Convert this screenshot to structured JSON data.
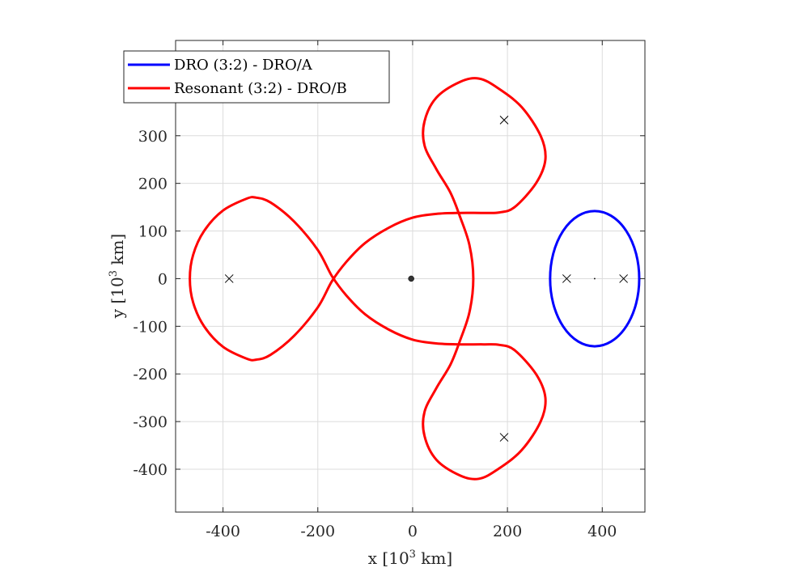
{
  "chart_data": {
    "type": "line",
    "xlabel_prefix": "x [10",
    "ylabel_prefix": "y [10",
    "unit_exponent": "3",
    "unit_suffix": " km]",
    "xlim": [
      -500,
      490
    ],
    "ylim": [
      -490,
      500
    ],
    "xticks": [
      -400,
      -200,
      0,
      200,
      400
    ],
    "yticks": [
      -400,
      -300,
      -200,
      -100,
      0,
      100,
      200,
      300
    ],
    "xtick_labels": [
      "-400",
      "-200",
      "0",
      "200",
      "400"
    ],
    "ytick_labels": [
      "-400",
      "-300",
      "-200",
      "-100",
      "0",
      "100",
      "200",
      "300"
    ],
    "grid": true,
    "legend_position": "top-left",
    "series": [
      {
        "name": "DRO (3:2) - DRO/A",
        "color": "#0000ff",
        "center": [
          384,
          0
        ],
        "semi_axes": [
          94,
          142
        ]
      },
      {
        "name": "Resonant (3:2) - DRO/B",
        "color": "#ff0000",
        "points": [
          [
            -470,
            0
          ],
          [
            -463,
            -50
          ],
          [
            -440,
            -100
          ],
          [
            -400,
            -143
          ],
          [
            -350,
            -168
          ],
          [
            -330,
            -170
          ],
          [
            -300,
            -160
          ],
          [
            -250,
            -120
          ],
          [
            -200,
            -60
          ],
          [
            -170,
            -5
          ],
          [
            -140,
            35
          ],
          [
            -100,
            75
          ],
          [
            -50,
            107
          ],
          [
            0,
            128
          ],
          [
            50,
            136
          ],
          [
            100,
            138
          ],
          [
            150,
            138
          ],
          [
            183,
            139
          ],
          [
            215,
            150
          ],
          [
            260,
            200
          ],
          [
            280,
            250
          ],
          [
            270,
            300
          ],
          [
            230,
            360
          ],
          [
            180,
            400
          ],
          [
            140,
            420
          ],
          [
            100,
            413
          ],
          [
            50,
            380
          ],
          [
            25,
            330
          ],
          [
            25,
            280
          ],
          [
            50,
            230
          ],
          [
            80,
            180
          ],
          [
            100,
            130
          ],
          [
            120,
            70
          ],
          [
            128,
            0
          ],
          [
            120,
            -70
          ],
          [
            100,
            -130
          ],
          [
            80,
            -180
          ],
          [
            50,
            -230
          ],
          [
            25,
            -280
          ],
          [
            25,
            -330
          ],
          [
            50,
            -380
          ],
          [
            100,
            -413
          ],
          [
            140,
            -420
          ],
          [
            180,
            -400
          ],
          [
            230,
            -360
          ],
          [
            270,
            -300
          ],
          [
            280,
            -250
          ],
          [
            260,
            -200
          ],
          [
            215,
            -150
          ],
          [
            183,
            -139
          ],
          [
            150,
            -138
          ],
          [
            100,
            -138
          ],
          [
            50,
            -136
          ],
          [
            0,
            -128
          ],
          [
            -50,
            -107
          ],
          [
            -100,
            -75
          ],
          [
            -140,
            -35
          ],
          [
            -170,
            5
          ],
          [
            -200,
            60
          ],
          [
            -250,
            120
          ],
          [
            -300,
            160
          ],
          [
            -330,
            170
          ],
          [
            -350,
            168
          ],
          [
            -400,
            143
          ],
          [
            -440,
            100
          ],
          [
            -463,
            50
          ],
          [
            -470,
            0
          ]
        ]
      }
    ],
    "markers": {
      "cross": [
        [
          -387,
          0
        ],
        [
          193,
          333
        ],
        [
          193,
          -333
        ],
        [
          325,
          0
        ],
        [
          445,
          0
        ]
      ],
      "dot": [
        [
          -3,
          0
        ]
      ],
      "small_dot": [
        [
          384,
          0
        ]
      ]
    }
  }
}
